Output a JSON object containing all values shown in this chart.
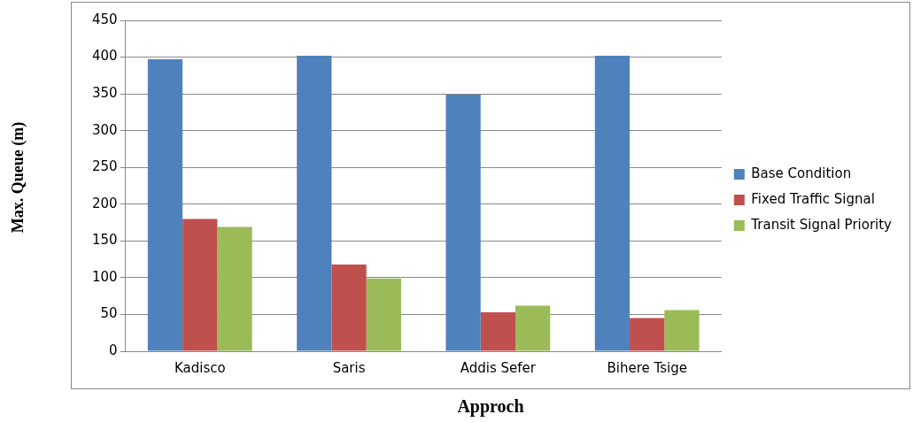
{
  "chart_data": {
    "type": "bar",
    "xlabel": "Approch",
    "ylabel": "Max. Queue (m)",
    "categories": [
      "Kadisco",
      "Saris",
      "Addis Sefer",
      "Bihere Tsige"
    ],
    "series": [
      {
        "name": "Base Condition",
        "color": "#4f81bd",
        "values": [
          397,
          402,
          349,
          402
        ]
      },
      {
        "name": "Fixed Traffic Signal",
        "color": "#c0504d",
        "values": [
          180,
          118,
          53,
          45
        ]
      },
      {
        "name": "Transit Signal Priority",
        "color": "#9bbb59",
        "values": [
          169,
          99,
          62,
          56
        ]
      }
    ],
    "ylim": [
      0,
      450
    ],
    "yticks": [
      0,
      50,
      100,
      150,
      200,
      250,
      300,
      350,
      400,
      450
    ],
    "grid": "y",
    "legend": "right"
  }
}
